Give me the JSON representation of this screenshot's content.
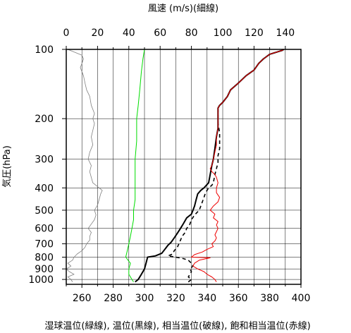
{
  "chart_data": {
    "type": "line",
    "title": "",
    "top_axis": {
      "label": "風速 (m/s)(細線)",
      "range": [
        0,
        150
      ],
      "ticks": [
        0,
        20,
        40,
        60,
        80,
        100,
        120,
        140
      ]
    },
    "bottom_axis": {
      "label": "湿球温位(緑線), 温位(黒線), 相当温位(破線), 飽和相当温位(赤線)",
      "range": [
        250,
        400
      ],
      "ticks": [
        260,
        280,
        300,
        320,
        340,
        360,
        380,
        400
      ]
    },
    "y_axis": {
      "label": "気圧(hPa)",
      "scale": "log",
      "inverted": true,
      "range": [
        1050,
        100
      ],
      "ticks": [
        100,
        200,
        300,
        400,
        500,
        600,
        700,
        800,
        900,
        1000
      ]
    },
    "grid": true,
    "series": [
      {
        "name": "風速",
        "axis": "top",
        "color": "#808080",
        "style": "thin",
        "points": [
          [
            4,
            1025
          ],
          [
            3,
            1000
          ],
          [
            1,
            975
          ],
          [
            5,
            950
          ],
          [
            2,
            925
          ],
          [
            0,
            900
          ],
          [
            3,
            875
          ],
          [
            1,
            850
          ],
          [
            4,
            825
          ],
          [
            5,
            800
          ],
          [
            7,
            775
          ],
          [
            10,
            750
          ],
          [
            12,
            725
          ],
          [
            13,
            700
          ],
          [
            15,
            675
          ],
          [
            15,
            650
          ],
          [
            16,
            625
          ],
          [
            14,
            600
          ],
          [
            16,
            575
          ],
          [
            18,
            550
          ],
          [
            19,
            525
          ],
          [
            18,
            500
          ],
          [
            20,
            475
          ],
          [
            21,
            450
          ],
          [
            22,
            425
          ],
          [
            23,
            410
          ],
          [
            21,
            400
          ],
          [
            19,
            390
          ],
          [
            17,
            380
          ],
          [
            16,
            360
          ],
          [
            15,
            340
          ],
          [
            16,
            320
          ],
          [
            14,
            300
          ],
          [
            15,
            280
          ],
          [
            17,
            260
          ],
          [
            16,
            240
          ],
          [
            17,
            225
          ],
          [
            18,
            210
          ],
          [
            17,
            200
          ],
          [
            18,
            190
          ],
          [
            16,
            175
          ],
          [
            15,
            160
          ],
          [
            13,
            150
          ],
          [
            12,
            140
          ],
          [
            11,
            130
          ],
          [
            10,
            125
          ],
          [
            9,
            120
          ],
          [
            10,
            115
          ],
          [
            11,
            110
          ],
          [
            10,
            106
          ],
          [
            1,
            100
          ]
        ]
      },
      {
        "name": "湿球温位",
        "axis": "bottom",
        "color": "#00dd00",
        "style": "solid",
        "points": [
          [
            293,
            1025
          ],
          [
            292,
            1000
          ],
          [
            290,
            950
          ],
          [
            290,
            900
          ],
          [
            291,
            850
          ],
          [
            288,
            800
          ],
          [
            289,
            750
          ],
          [
            290,
            700
          ],
          [
            291,
            650
          ],
          [
            292,
            600
          ],
          [
            293,
            550
          ],
          [
            293,
            500
          ],
          [
            294,
            450
          ],
          [
            294,
            400
          ],
          [
            294,
            350
          ],
          [
            294,
            300
          ],
          [
            295,
            250
          ],
          [
            295,
            200
          ],
          [
            296,
            175
          ],
          [
            297,
            150
          ],
          [
            298,
            125
          ],
          [
            299,
            110
          ],
          [
            300,
            100
          ]
        ]
      },
      {
        "name": "温位",
        "axis": "bottom",
        "color": "#000000",
        "style": "solid-thick",
        "points": [
          [
            294,
            1025
          ],
          [
            296,
            1000
          ],
          [
            298,
            950
          ],
          [
            300,
            900
          ],
          [
            301,
            850
          ],
          [
            302,
            800
          ],
          [
            307,
            790
          ],
          [
            311,
            770
          ],
          [
            313,
            740
          ],
          [
            315,
            710
          ],
          [
            317,
            690
          ],
          [
            319,
            660
          ],
          [
            321,
            630
          ],
          [
            323,
            600
          ],
          [
            325,
            570
          ],
          [
            327,
            540
          ],
          [
            330,
            520
          ],
          [
            331,
            500
          ],
          [
            332,
            480
          ],
          [
            333,
            450
          ],
          [
            334,
            425
          ],
          [
            336,
            410
          ],
          [
            338,
            400
          ],
          [
            341,
            380
          ],
          [
            342,
            350
          ],
          [
            343,
            320
          ],
          [
            344,
            300
          ],
          [
            345,
            270
          ],
          [
            346,
            240
          ],
          [
            347,
            220
          ],
          [
            347,
            200
          ],
          [
            347,
            180
          ],
          [
            348,
            175
          ],
          [
            350,
            170
          ],
          [
            353,
            160
          ],
          [
            355,
            150
          ],
          [
            360,
            140
          ],
          [
            365,
            130
          ],
          [
            370,
            123
          ],
          [
            373,
            115
          ],
          [
            376,
            110
          ],
          [
            380,
            105
          ],
          [
            388,
            101
          ],
          [
            389,
            100
          ]
        ]
      },
      {
        "name": "相当温位",
        "axis": "bottom",
        "color": "#000000",
        "style": "dashed",
        "points": [
          [
            328,
            1025
          ],
          [
            330,
            1000
          ],
          [
            328,
            975
          ],
          [
            329,
            950
          ],
          [
            330,
            925
          ],
          [
            329,
            900
          ],
          [
            331,
            875
          ],
          [
            330,
            850
          ],
          [
            328,
            825
          ],
          [
            325,
            812
          ],
          [
            320,
            800
          ],
          [
            315,
            790
          ],
          [
            318,
            775
          ],
          [
            319,
            750
          ],
          [
            321,
            725
          ],
          [
            322,
            700
          ],
          [
            323,
            675
          ],
          [
            324,
            650
          ],
          [
            326,
            625
          ],
          [
            327,
            600
          ],
          [
            329,
            575
          ],
          [
            330,
            550
          ],
          [
            332,
            525
          ],
          [
            335,
            500
          ],
          [
            336,
            480
          ],
          [
            337,
            460
          ],
          [
            338,
            440
          ],
          [
            339,
            420
          ],
          [
            341,
            400
          ],
          [
            343,
            390
          ],
          [
            344,
            380
          ],
          [
            345,
            350
          ],
          [
            346,
            330
          ],
          [
            347,
            310
          ],
          [
            347,
            290
          ],
          [
            348,
            270
          ],
          [
            348,
            250
          ],
          [
            348,
            230
          ],
          [
            347,
            210
          ],
          [
            347,
            200
          ],
          [
            347,
            180
          ],
          [
            348,
            175
          ],
          [
            350,
            170
          ],
          [
            353,
            160
          ],
          [
            355,
            150
          ],
          [
            360,
            140
          ],
          [
            365,
            130
          ],
          [
            370,
            123
          ],
          [
            373,
            115
          ],
          [
            376,
            110
          ],
          [
            380,
            105
          ],
          [
            388,
            101
          ],
          [
            389,
            100
          ]
        ]
      },
      {
        "name": "飽和相当温位",
        "axis": "bottom",
        "color": "#ee0000",
        "style": "solid",
        "points": [
          [
            346,
            1025
          ],
          [
            345,
            1000
          ],
          [
            343,
            975
          ],
          [
            340,
            950
          ],
          [
            338,
            925
          ],
          [
            334,
            900
          ],
          [
            331,
            875
          ],
          [
            332,
            850
          ],
          [
            335,
            825
          ],
          [
            342,
            805
          ],
          [
            330,
            800
          ],
          [
            332,
            780
          ],
          [
            337,
            760
          ],
          [
            340,
            740
          ],
          [
            344,
            720
          ],
          [
            343,
            700
          ],
          [
            345,
            680
          ],
          [
            346,
            660
          ],
          [
            345,
            640
          ],
          [
            346,
            620
          ],
          [
            347,
            600
          ],
          [
            346,
            580
          ],
          [
            347,
            560
          ],
          [
            344,
            540
          ],
          [
            345,
            520
          ],
          [
            342,
            500
          ],
          [
            344,
            480
          ],
          [
            347,
            460
          ],
          [
            348,
            440
          ],
          [
            346,
            420
          ],
          [
            346,
            400
          ],
          [
            347,
            380
          ],
          [
            346,
            360
          ],
          [
            345,
            350
          ],
          [
            343,
            340
          ],
          [
            342,
            330
          ],
          [
            343,
            320
          ],
          [
            344,
            300
          ],
          [
            345,
            280
          ],
          [
            346,
            260
          ],
          [
            346,
            240
          ],
          [
            347,
            220
          ],
          [
            347,
            200
          ],
          [
            347,
            180
          ],
          [
            348,
            175
          ],
          [
            350,
            170
          ],
          [
            353,
            160
          ],
          [
            355,
            150
          ],
          [
            360,
            140
          ],
          [
            365,
            130
          ],
          [
            370,
            123
          ],
          [
            373,
            115
          ],
          [
            376,
            110
          ],
          [
            380,
            105
          ],
          [
            388,
            101
          ],
          [
            389,
            100
          ]
        ]
      }
    ]
  }
}
